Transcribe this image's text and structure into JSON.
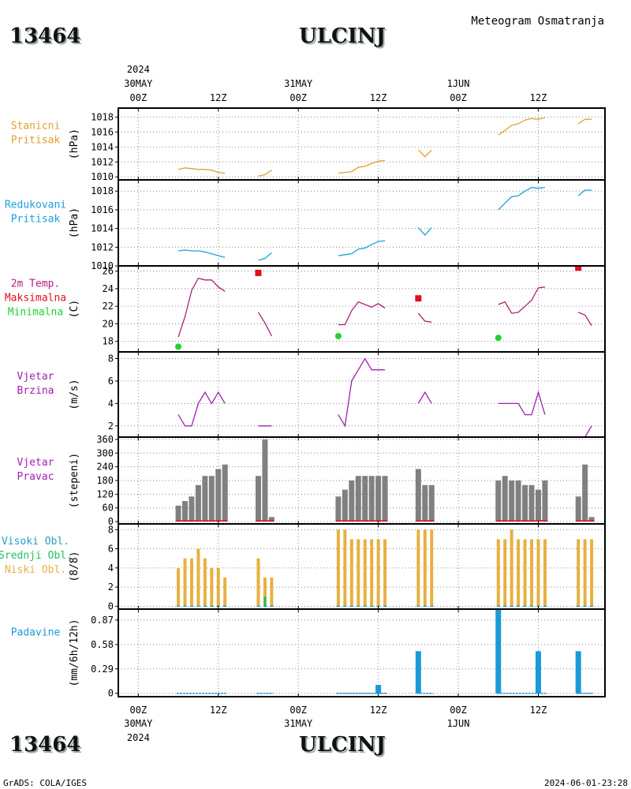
{
  "header": {
    "station_id": "13464",
    "station_name": "ULCINJ",
    "title": "Meteogram Osmatranja"
  },
  "time_axis": {
    "year": "2024",
    "ticks": [
      {
        "t": 0,
        "hour": "00Z",
        "date": "30MAY"
      },
      {
        "t": 12,
        "hour": "12Z",
        "date": ""
      },
      {
        "t": 24,
        "hour": "00Z",
        "date": "31MAY"
      },
      {
        "t": 36,
        "hour": "12Z",
        "date": ""
      },
      {
        "t": 48,
        "hour": "00Z",
        "date": "1JUN"
      },
      {
        "t": 60,
        "hour": "12Z",
        "date": ""
      }
    ],
    "range_hours": [
      -3,
      70
    ]
  },
  "footer": {
    "left": "GrADS: COLA/IGES",
    "right": "2024-06-01-23:28"
  },
  "colors": {
    "stanicni": "#e0a030",
    "redukovani": "#1aa0d8",
    "temp": "#b0207a",
    "tmax": "#e0101a",
    "tmin": "#22d030",
    "wind": "#a020b0",
    "dir_bar": "#808080",
    "cloud_low": "#e8b040",
    "cloud_mid": "#20c060",
    "cloud_high": "#20a0c0",
    "precip": "#1a9ad8",
    "grid": "#888888"
  },
  "panels": {
    "p1": {
      "label_lines": [
        "Stanicni",
        "Pritisak"
      ],
      "ylabel": "(hPa)"
    },
    "p2": {
      "label_lines": [
        "Redukovani",
        "Pritisak"
      ],
      "ylabel": "(hPa)"
    },
    "p3": {
      "label_lines": [
        "2m Temp.",
        "Maksimalna",
        "Minimalna"
      ],
      "ylabel": "(C)"
    },
    "p4": {
      "label_lines": [
        "Vjetar",
        "Brzina"
      ],
      "ylabel": "(m/s)"
    },
    "p5": {
      "label_lines": [
        "Vjetar",
        "Pravac"
      ],
      "ylabel": "(stepeni)"
    },
    "p6": {
      "label_lines": [
        "Visoki Obl.",
        "Srednji Obl.",
        "Niski Obl."
      ],
      "ylabel": "(8/8)"
    },
    "p7": {
      "label_lines": [
        "Padavine"
      ],
      "ylabel": "(mm/6h/12h)"
    }
  },
  "chart_data": [
    {
      "type": "line",
      "name": "Stanicni Pritisak",
      "ylabel": "(hPa)",
      "ylim": [
        1009.6,
        1019.2
      ],
      "yticks": [
        1010,
        1012,
        1014,
        1016,
        1018
      ],
      "segments": [
        {
          "x": [
            6,
            7,
            8,
            9,
            10,
            11,
            12,
            13
          ],
          "y": [
            1011,
            1011.2,
            1011.1,
            1011,
            1011,
            1010.9,
            1010.6,
            1010.5
          ]
        },
        {
          "x": [
            18,
            19,
            20
          ],
          "y": [
            1010.1,
            1010.3,
            1010.9
          ]
        },
        {
          "x": [
            30,
            31,
            32,
            33,
            34,
            35,
            36,
            37
          ],
          "y": [
            1010.5,
            1010.6,
            1010.7,
            1011.3,
            1011.4,
            1011.8,
            1012.1,
            1012.2
          ]
        },
        {
          "x": [
            42,
            43,
            44
          ],
          "y": [
            1013.6,
            1012.7,
            1013.6
          ]
        },
        {
          "x": [
            54,
            55,
            56,
            57,
            58,
            59,
            60,
            61
          ],
          "y": [
            1015.6,
            1016.2,
            1016.9,
            1017.1,
            1017.6,
            1017.8,
            1017.7,
            1017.9
          ]
        },
        {
          "x": [
            66,
            67,
            68
          ],
          "y": [
            1017.1,
            1017.7,
            1017.7
          ]
        }
      ]
    },
    {
      "type": "line",
      "name": "Redukovani Pritisak",
      "ylabel": "(hPa)",
      "ylim": [
        1010,
        1019.2
      ],
      "yticks": [
        1010,
        1012,
        1014,
        1016,
        1018
      ],
      "segments": [
        {
          "x": [
            6,
            7,
            8,
            9,
            10,
            11,
            12,
            13
          ],
          "y": [
            1011.6,
            1011.7,
            1011.6,
            1011.6,
            1011.5,
            1011.3,
            1011.1,
            1010.9
          ]
        },
        {
          "x": [
            18,
            19,
            20
          ],
          "y": [
            1010.6,
            1010.8,
            1011.4
          ]
        },
        {
          "x": [
            30,
            31,
            32,
            33,
            34,
            35,
            36,
            37
          ],
          "y": [
            1011.1,
            1011.2,
            1011.3,
            1011.8,
            1011.9,
            1012.3,
            1012.6,
            1012.7
          ]
        },
        {
          "x": [
            42,
            43,
            44
          ],
          "y": [
            1014.1,
            1013.3,
            1014.1
          ]
        },
        {
          "x": [
            54,
            55,
            56,
            57,
            58,
            59,
            60,
            61
          ],
          "y": [
            1016.0,
            1016.7,
            1017.4,
            1017.5,
            1018.0,
            1018.4,
            1018.3,
            1018.4
          ]
        },
        {
          "x": [
            66,
            67,
            68
          ],
          "y": [
            1017.5,
            1018.1,
            1018.1
          ]
        }
      ]
    },
    {
      "type": "line",
      "name": "2m Temp.",
      "ylabel": "(C)",
      "ylim": [
        16.8,
        26.6
      ],
      "yticks": [
        18,
        20,
        22,
        24,
        26
      ],
      "segments": [
        {
          "x": [
            6,
            7,
            8,
            9,
            10,
            11,
            12,
            13
          ],
          "y": [
            18.5,
            20.8,
            23.8,
            25.2,
            25,
            25,
            24.2,
            23.7
          ]
        },
        {
          "x": [
            18,
            19,
            20
          ],
          "y": [
            21.3,
            20.1,
            18.6
          ]
        },
        {
          "x": [
            30,
            31,
            32,
            33,
            34,
            35,
            36,
            37
          ],
          "y": [
            19.9,
            19.9,
            21.5,
            22.5,
            22.2,
            21.9,
            22.3,
            21.8
          ]
        },
        {
          "x": [
            42,
            43,
            44
          ],
          "y": [
            21.2,
            20.3,
            20.2
          ]
        },
        {
          "x": [
            54,
            55,
            56,
            57,
            58,
            59,
            60,
            61
          ],
          "y": [
            22.2,
            22.5,
            21.2,
            21.3,
            22.0,
            22.7,
            24.1,
            24.2
          ]
        },
        {
          "x": [
            66,
            67,
            68
          ],
          "y": [
            21.3,
            21.0,
            19.8
          ]
        }
      ],
      "max_points": [
        {
          "x": 18,
          "y": 25.8
        },
        {
          "x": 42,
          "y": 22.9
        },
        {
          "x": 66,
          "y": 26.4
        }
      ],
      "min_points": [
        {
          "x": 6,
          "y": 17.4
        },
        {
          "x": 30,
          "y": 18.6
        },
        {
          "x": 54,
          "y": 18.4
        }
      ]
    },
    {
      "type": "line",
      "name": "Vjetar Brzina",
      "ylabel": "(m/s)",
      "ylim": [
        1,
        8.6
      ],
      "yticks": [
        2,
        4,
        6,
        8
      ],
      "segments": [
        {
          "x": [
            6,
            7,
            8,
            9,
            10,
            11,
            12,
            13
          ],
          "y": [
            3,
            2,
            2,
            4,
            5,
            4,
            5,
            4
          ]
        },
        {
          "x": [
            18,
            19,
            20
          ],
          "y": [
            2,
            2,
            2
          ]
        },
        {
          "x": [
            30,
            31,
            32,
            33,
            34,
            35,
            36,
            37
          ],
          "y": [
            3,
            2,
            6,
            7,
            8,
            7,
            7,
            7
          ]
        },
        {
          "x": [
            42,
            43,
            44
          ],
          "y": [
            4,
            5,
            4
          ]
        },
        {
          "x": [
            54,
            55,
            56,
            57,
            58,
            59,
            60,
            61
          ],
          "y": [
            4,
            4,
            4,
            4,
            3,
            3,
            5,
            3
          ]
        },
        {
          "x": [
            66,
            67,
            68
          ],
          "y": [
            1,
            1,
            2
          ]
        }
      ]
    },
    {
      "type": "bar",
      "name": "Vjetar Pravac",
      "ylabel": "(stepeni)",
      "ylim": [
        -10,
        370
      ],
      "yticks": [
        0,
        60,
        120,
        180,
        240,
        300,
        360
      ],
      "x": [
        6,
        7,
        8,
        9,
        10,
        11,
        12,
        13,
        18,
        19,
        20,
        30,
        31,
        32,
        33,
        34,
        35,
        36,
        37,
        42,
        43,
        44,
        54,
        55,
        56,
        57,
        58,
        59,
        60,
        61,
        66,
        67,
        68
      ],
      "values": [
        70,
        90,
        110,
        160,
        200,
        200,
        230,
        250,
        200,
        360,
        20,
        110,
        140,
        180,
        200,
        200,
        200,
        200,
        200,
        230,
        160,
        160,
        180,
        200,
        180,
        180,
        160,
        160,
        140,
        180,
        110,
        250,
        20
      ]
    },
    {
      "type": "bar",
      "name": "Oblacnost",
      "ylabel": "(8/8)",
      "ylim": [
        -0.3,
        8.6
      ],
      "yticks": [
        0,
        2,
        4,
        6,
        8
      ],
      "x": [
        6,
        7,
        8,
        9,
        10,
        11,
        12,
        13,
        18,
        19,
        20,
        30,
        31,
        32,
        33,
        34,
        35,
        36,
        37,
        42,
        43,
        44,
        54,
        55,
        56,
        57,
        58,
        59,
        60,
        61,
        66,
        67,
        68
      ],
      "series": [
        {
          "name": "Niski Obl.",
          "values": [
            4,
            5,
            5,
            6,
            5,
            4,
            4,
            3,
            5,
            3,
            3,
            8,
            8,
            7,
            7,
            7,
            7,
            7,
            7,
            8,
            8,
            8,
            7,
            7,
            8,
            7,
            7,
            7,
            7,
            7,
            7,
            7,
            7
          ]
        },
        {
          "name": "Srednji Obl.",
          "values": [
            0,
            0,
            0,
            0,
            0,
            0,
            0,
            0,
            0,
            1,
            0,
            0,
            0,
            0,
            0,
            0,
            0,
            0,
            0,
            0,
            0,
            0,
            0,
            0,
            0,
            0,
            0,
            0,
            0,
            0,
            0,
            0,
            0
          ]
        },
        {
          "name": "Visoki Obl.",
          "values": [
            0,
            0,
            0,
            0,
            0,
            0,
            0,
            0,
            0,
            0,
            0,
            0,
            0,
            0,
            0,
            0,
            0,
            0,
            0,
            0,
            0,
            0,
            0,
            0,
            0,
            0,
            0,
            0,
            0,
            0,
            0,
            0,
            0
          ]
        }
      ]
    },
    {
      "type": "bar",
      "name": "Padavine",
      "ylabel": "(mm/6h/12h)",
      "ylim": [
        -0.04,
        1.0
      ],
      "yticks": [
        0,
        0.29,
        0.58,
        0.87
      ],
      "ytick_labels": [
        "0",
        "0.29",
        "0.58",
        "0.87"
      ],
      "x": [
        36,
        42,
        54,
        60,
        66
      ],
      "values": [
        0.1,
        0.5,
        1.0,
        0.5,
        0.5
      ]
    }
  ]
}
